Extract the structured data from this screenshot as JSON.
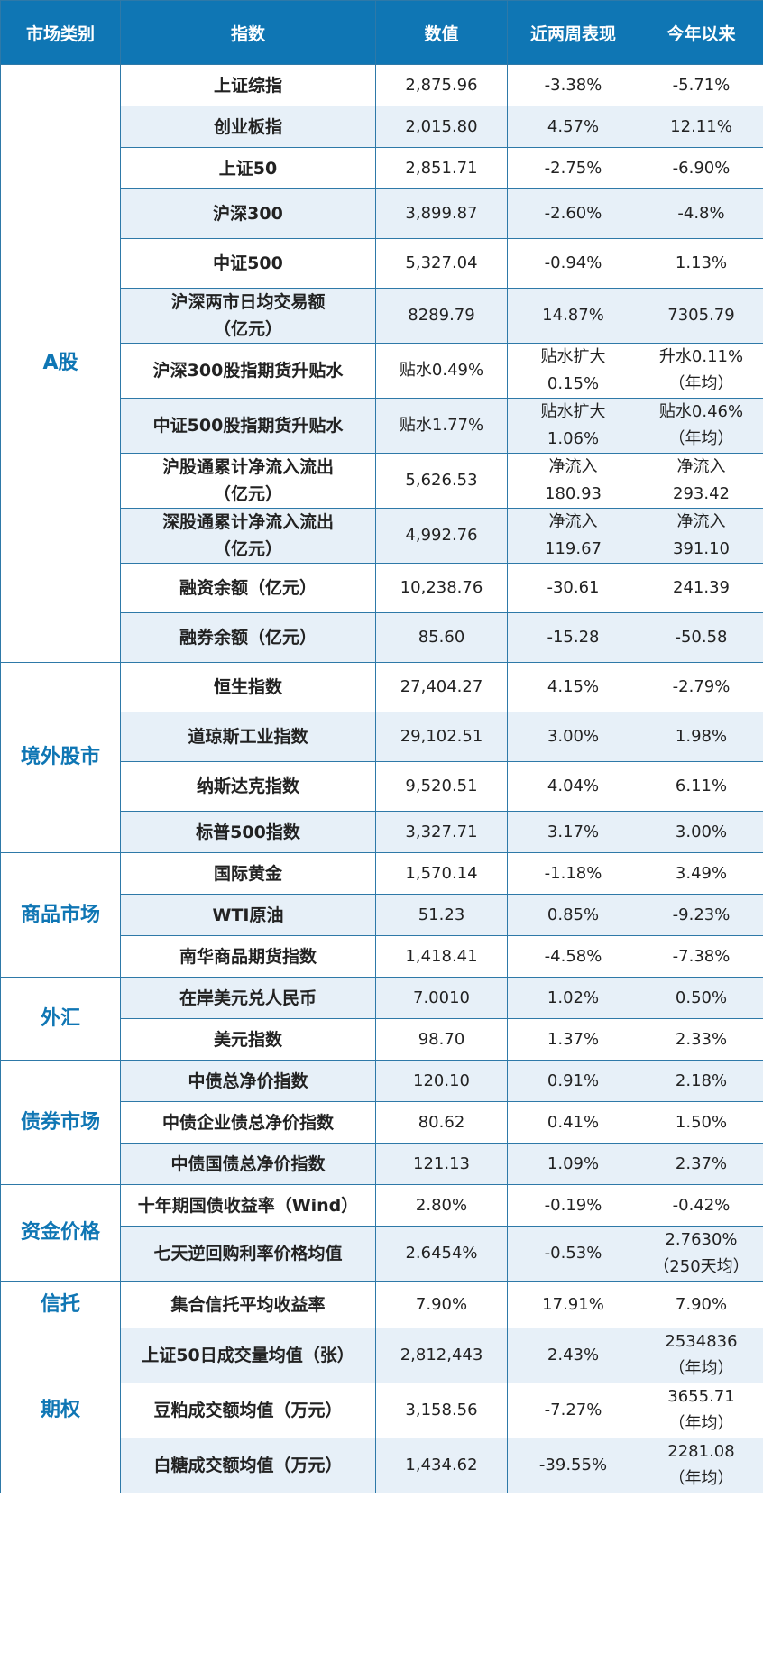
{
  "header": {
    "category": "市场类别",
    "index": "指数",
    "value": "数值",
    "two_week": "近两周表现",
    "ytd": "今年以来"
  },
  "colors": {
    "header_bg": "#0f76b4",
    "category_text": "#0f76b4",
    "alt_row_bg": "#e7f0f8",
    "border": "#2e79a8"
  },
  "groups": [
    {
      "category": "A股",
      "rows": [
        {
          "name": [
            "上证综指"
          ],
          "value": [
            "2,875.96"
          ],
          "two_week": [
            "-3.38%"
          ],
          "ytd": [
            "-5.71%"
          ]
        },
        {
          "name": [
            "创业板指"
          ],
          "value": [
            "2,015.80"
          ],
          "two_week": [
            "4.57%"
          ],
          "ytd": [
            "12.11%"
          ]
        },
        {
          "name": [
            "上证50"
          ],
          "value": [
            "2,851.71"
          ],
          "two_week": [
            "-2.75%"
          ],
          "ytd": [
            "-6.90%"
          ]
        },
        {
          "name": [
            "沪深300"
          ],
          "value": [
            "3,899.87"
          ],
          "two_week": [
            "-2.60%"
          ],
          "ytd": [
            "-4.8%"
          ]
        },
        {
          "name": [
            "中证500"
          ],
          "value": [
            "5,327.04"
          ],
          "two_week": [
            "-0.94%"
          ],
          "ytd": [
            "1.13%"
          ]
        },
        {
          "name": [
            "沪深两市日均交易额",
            "（亿元）"
          ],
          "value": [
            "8289.79"
          ],
          "two_week": [
            "14.87%"
          ],
          "ytd": [
            "7305.79"
          ]
        },
        {
          "name": [
            "沪深300股指期货升贴水"
          ],
          "value": [
            "贴水0.49%"
          ],
          "two_week": [
            "贴水扩大",
            "0.15%"
          ],
          "ytd": [
            "升水0.11%",
            "（年均）"
          ]
        },
        {
          "name": [
            "中证500股指期货升贴水"
          ],
          "value": [
            "贴水1.77%"
          ],
          "two_week": [
            "贴水扩大",
            "1.06%"
          ],
          "ytd": [
            "贴水0.46%",
            "（年均）"
          ]
        },
        {
          "name": [
            "沪股通累计净流入流出",
            "（亿元）"
          ],
          "value": [
            "5,626.53"
          ],
          "two_week": [
            "净流入",
            "180.93"
          ],
          "ytd": [
            "净流入",
            "293.42"
          ]
        },
        {
          "name": [
            "深股通累计净流入流出",
            "（亿元）"
          ],
          "value": [
            "4,992.76"
          ],
          "two_week": [
            "净流入",
            "119.67"
          ],
          "ytd": [
            "净流入",
            "391.10"
          ]
        },
        {
          "name": [
            "融资余额（亿元）"
          ],
          "value": [
            "10,238.76"
          ],
          "two_week": [
            "-30.61"
          ],
          "ytd": [
            "241.39"
          ]
        },
        {
          "name": [
            "融券余额（亿元）"
          ],
          "value": [
            "85.60"
          ],
          "two_week": [
            "-15.28"
          ],
          "ytd": [
            "-50.58"
          ]
        }
      ]
    },
    {
      "category": "境外股市",
      "rows": [
        {
          "name": [
            "恒生指数"
          ],
          "value": [
            "27,404.27"
          ],
          "two_week": [
            "4.15%"
          ],
          "ytd": [
            "-2.79%"
          ]
        },
        {
          "name": [
            "道琼斯工业指数"
          ],
          "value": [
            "29,102.51"
          ],
          "two_week": [
            "3.00%"
          ],
          "ytd": [
            "1.98%"
          ]
        },
        {
          "name": [
            "纳斯达克指数"
          ],
          "value": [
            "9,520.51"
          ],
          "two_week": [
            "4.04%"
          ],
          "ytd": [
            "6.11%"
          ]
        },
        {
          "name": [
            "标普500指数"
          ],
          "value": [
            "3,327.71"
          ],
          "two_week": [
            "3.17%"
          ],
          "ytd": [
            "3.00%"
          ]
        }
      ]
    },
    {
      "category": "商品市场",
      "rows": [
        {
          "name": [
            "国际黄金"
          ],
          "value": [
            "1,570.14"
          ],
          "two_week": [
            "-1.18%"
          ],
          "ytd": [
            "3.49%"
          ]
        },
        {
          "name": [
            "WTI原油"
          ],
          "value": [
            "51.23"
          ],
          "two_week": [
            "0.85%"
          ],
          "ytd": [
            "-9.23%"
          ]
        },
        {
          "name": [
            "南华商品期货指数"
          ],
          "value": [
            "1,418.41"
          ],
          "two_week": [
            "-4.58%"
          ],
          "ytd": [
            "-7.38%"
          ]
        }
      ]
    },
    {
      "category": "外汇",
      "rows": [
        {
          "name": [
            "在岸美元兑人民币"
          ],
          "value": [
            "7.0010"
          ],
          "two_week": [
            "1.02%"
          ],
          "ytd": [
            "0.50%"
          ]
        },
        {
          "name": [
            "美元指数"
          ],
          "value": [
            "98.70"
          ],
          "two_week": [
            "1.37%"
          ],
          "ytd": [
            "2.33%"
          ]
        }
      ]
    },
    {
      "category": "债券市场",
      "rows": [
        {
          "name": [
            "中债总净价指数"
          ],
          "value": [
            "120.10"
          ],
          "two_week": [
            "0.91%"
          ],
          "ytd": [
            "2.18%"
          ]
        },
        {
          "name": [
            "中债企业债总净价指数"
          ],
          "value": [
            "80.62"
          ],
          "two_week": [
            "0.41%"
          ],
          "ytd": [
            "1.50%"
          ]
        },
        {
          "name": [
            "中债国债总净价指数"
          ],
          "value": [
            "121.13"
          ],
          "two_week": [
            "1.09%"
          ],
          "ytd": [
            "2.37%"
          ]
        }
      ]
    },
    {
      "category": "资金价格",
      "rows": [
        {
          "name": [
            "十年期国债收益率（Wind）"
          ],
          "value": [
            "2.80%"
          ],
          "two_week": [
            "-0.19%"
          ],
          "ytd": [
            "-0.42%"
          ]
        },
        {
          "name": [
            "七天逆回购利率价格均值"
          ],
          "value": [
            "2.6454%"
          ],
          "two_week": [
            "-0.53%"
          ],
          "ytd": [
            "2.7630%",
            "（250天均）"
          ]
        }
      ]
    },
    {
      "category": "信托",
      "rows": [
        {
          "name": [
            "集合信托平均收益率"
          ],
          "value": [
            "7.90%"
          ],
          "two_week": [
            "17.91%"
          ],
          "ytd": [
            "7.90%"
          ]
        }
      ]
    },
    {
      "category": "期权",
      "rows": [
        {
          "name": [
            "上证50日成交量均值（张）"
          ],
          "value": [
            "2,812,443"
          ],
          "two_week": [
            "2.43%"
          ],
          "ytd": [
            "2534836",
            "（年均）"
          ]
        },
        {
          "name": [
            "豆粕成交额均值（万元）"
          ],
          "value": [
            "3,158.56"
          ],
          "two_week": [
            "-7.27%"
          ],
          "ytd": [
            "3655.71",
            "（年均）"
          ]
        },
        {
          "name": [
            "白糖成交额均值（万元）"
          ],
          "value": [
            "1,434.62"
          ],
          "two_week": [
            "-39.55%"
          ],
          "ytd": [
            "2281.08",
            "（年均）"
          ]
        }
      ]
    }
  ]
}
